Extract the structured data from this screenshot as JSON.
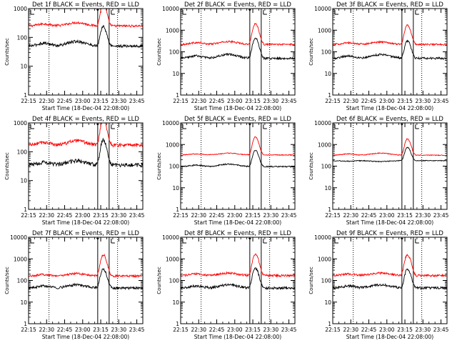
{
  "chart_data": [
    {
      "type": "line",
      "title": "Det 1f BLACK = Events, RED = LLD",
      "xlabel": "Start Time (18-Dec-04 22:08:00)",
      "ylabel": "Counts/sec",
      "x_ticks": [
        "22:15",
        "22:30",
        "22:45",
        "23:00",
        "23:15",
        "23:30",
        "23:45"
      ],
      "y_scale": "log",
      "ylim": [
        1,
        1000
      ],
      "y_ticks": [
        "1",
        "10",
        "100",
        "1000"
      ],
      "series": [
        {
          "color": "#ff0000",
          "base": 250,
          "hump": 1.3,
          "peak": 1200,
          "noise": 0.04
        },
        {
          "color": "#000000",
          "base": 50,
          "hump": 1.45,
          "peak": 190,
          "noise": 0.05
        }
      ]
    },
    {
      "type": "line",
      "title": "Det 2f BLACK = Events, RED = LLD",
      "xlabel": "Start Time (18-Dec-04 22:08:00)",
      "ylabel": "Counts/sec",
      "x_ticks": [
        "22:15",
        "22:30",
        "22:45",
        "23:00",
        "23:15",
        "23:30",
        "23:45"
      ],
      "y_scale": "log",
      "ylim": [
        1,
        10000
      ],
      "y_ticks": [
        "1",
        "10",
        "100",
        "1000",
        "10000"
      ],
      "series": [
        {
          "color": "#ff0000",
          "base": 220,
          "hump": 1.35,
          "peak": 1800,
          "noise": 0.04
        },
        {
          "color": "#000000",
          "base": 50,
          "hump": 1.5,
          "peak": 380,
          "noise": 0.05
        }
      ]
    },
    {
      "type": "line",
      "title": "Det 3f BLACK = Events, RED = LLD",
      "xlabel": "Start Time (18-Dec-04 22:08:00)",
      "ylabel": "Counts/sec",
      "x_ticks": [
        "22:15",
        "22:30",
        "22:45",
        "23:00",
        "23:15",
        "23:30",
        "23:45"
      ],
      "y_scale": "log",
      "ylim": [
        1,
        10000
      ],
      "y_ticks": [
        "1",
        "10",
        "100",
        "1000",
        "10000"
      ],
      "series": [
        {
          "color": "#ff0000",
          "base": 220,
          "hump": 1.3,
          "peak": 1500,
          "noise": 0.04
        },
        {
          "color": "#000000",
          "base": 50,
          "hump": 1.5,
          "peak": 270,
          "noise": 0.05
        }
      ]
    },
    {
      "type": "line",
      "title": "Det 4f BLACK = Events, RED = LLD",
      "xlabel": "Start Time (18-Dec-04 22:08:00)",
      "ylabel": "Counts/sec",
      "x_ticks": [
        "22:15",
        "22:30",
        "22:45",
        "23:00",
        "23:15",
        "23:30",
        "23:45"
      ],
      "y_scale": "log",
      "ylim": [
        1,
        1000
      ],
      "y_ticks": [
        "1",
        "10",
        "100",
        "1000"
      ],
      "series": [
        {
          "color": "#ff0000",
          "base": 170,
          "hump": 1.4,
          "peak": 1200,
          "noise": 0.06
        },
        {
          "color": "#000000",
          "base": 35,
          "hump": 1.4,
          "peak": 220,
          "noise": 0.07
        }
      ]
    },
    {
      "type": "line",
      "title": "Det 5f BLACK = Events, RED = LLD",
      "xlabel": "Start Time (18-Dec-04 22:08:00)",
      "ylabel": "Counts/sec",
      "x_ticks": [
        "22:15",
        "22:30",
        "22:45",
        "23:00",
        "23:15",
        "23:30",
        "23:45"
      ],
      "y_scale": "log",
      "ylim": [
        1,
        10000
      ],
      "y_ticks": [
        "1",
        "10",
        "100",
        "1000",
        "10000"
      ],
      "series": [
        {
          "color": "#ff0000",
          "base": 330,
          "hump": 1.2,
          "peak": 1900,
          "noise": 0.02
        },
        {
          "color": "#000000",
          "base": 95,
          "hump": 1.3,
          "peak": 450,
          "noise": 0.03
        }
      ]
    },
    {
      "type": "line",
      "title": "Det 6f BLACK = Events, RED = LLD",
      "xlabel": "Start Time (18-Dec-04 22:08:00)",
      "ylabel": "Counts/sec",
      "x_ticks": [
        "22:15",
        "22:30",
        "22:45",
        "23:00",
        "23:15",
        "23:30",
        "23:45"
      ],
      "y_scale": "log",
      "ylim": [
        1,
        10000
      ],
      "y_ticks": [
        "1",
        "10",
        "100",
        "1000",
        "10000"
      ],
      "series": [
        {
          "color": "#ff0000",
          "base": 320,
          "hump": 1.25,
          "peak": 1500,
          "noise": 0.02
        },
        {
          "color": "#000000",
          "base": 180,
          "hump": 0.9,
          "peak": 560,
          "noise": 0.02
        }
      ]
    },
    {
      "type": "line",
      "title": "Det 7f BLACK = Events, RED = LLD",
      "xlabel": "Start Time (18-Dec-04 22:08:00)",
      "ylabel": "Counts/sec",
      "x_ticks": [
        "22:15",
        "22:30",
        "22:45",
        "23:00",
        "23:15",
        "23:30",
        "23:45"
      ],
      "y_scale": "log",
      "ylim": [
        1,
        10000
      ],
      "y_ticks": [
        "1",
        "10",
        "100",
        "1000",
        "10000"
      ],
      "series": [
        {
          "color": "#ff0000",
          "base": 160,
          "hump": 1.3,
          "peak": 1400,
          "noise": 0.05
        },
        {
          "color": "#000000",
          "base": 45,
          "hump": 1.4,
          "peak": 300,
          "noise": 0.06
        }
      ]
    },
    {
      "type": "line",
      "title": "Det 8f BLACK = Events, RED = LLD",
      "xlabel": "Start Time (18-Dec-04 22:08:00)",
      "ylabel": "Counts/sec",
      "x_ticks": [
        "22:15",
        "22:30",
        "22:45",
        "23:00",
        "23:15",
        "23:30",
        "23:45"
      ],
      "y_scale": "log",
      "ylim": [
        1,
        10000
      ],
      "y_ticks": [
        "1",
        "10",
        "100",
        "1000",
        "10000"
      ],
      "series": [
        {
          "color": "#ff0000",
          "base": 170,
          "hump": 1.3,
          "peak": 1500,
          "noise": 0.05
        },
        {
          "color": "#000000",
          "base": 45,
          "hump": 1.4,
          "peak": 320,
          "noise": 0.06
        }
      ]
    },
    {
      "type": "line",
      "title": "Det 9f BLACK = Events, RED = LLD",
      "xlabel": "Start Time (18-Dec-04 22:08:00)",
      "ylabel": "Counts/sec",
      "x_ticks": [
        "22:15",
        "22:30",
        "22:45",
        "23:00",
        "23:15",
        "23:30",
        "23:45"
      ],
      "y_scale": "log",
      "ylim": [
        1,
        10000
      ],
      "y_ticks": [
        "1",
        "10",
        "100",
        "1000",
        "10000"
      ],
      "series": [
        {
          "color": "#ff0000",
          "base": 170,
          "hump": 1.3,
          "peak": 1400,
          "noise": 0.05
        },
        {
          "color": "#000000",
          "base": 45,
          "hump": 1.4,
          "peak": 280,
          "noise": 0.06
        }
      ]
    }
  ]
}
